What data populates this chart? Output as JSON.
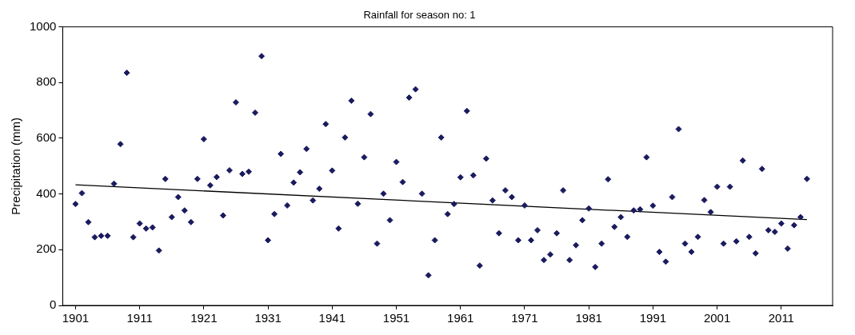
{
  "chart_data": {
    "type": "scatter",
    "title": "Rainfall for season no: 1",
    "ylabel": "Precipitation (mm)",
    "xlim": [
      1899,
      2019
    ],
    "xticks": [
      1901,
      1911,
      1921,
      1931,
      1941,
      1951,
      1961,
      1971,
      1981,
      1991,
      2001,
      2011
    ],
    "ylim": [
      0,
      1000
    ],
    "yticks": [
      0,
      200,
      400,
      600,
      800,
      1000
    ],
    "grid": false,
    "legend": false,
    "marker": "diamond",
    "series": [
      {
        "color": "#1a1a5e",
        "x": [
          1901,
          1902,
          1903,
          1904,
          1905,
          1906,
          1907,
          1908,
          1909,
          1910,
          1911,
          1912,
          1913,
          1914,
          1915,
          1916,
          1917,
          1918,
          1919,
          1920,
          1921,
          1922,
          1923,
          1924,
          1925,
          1926,
          1927,
          1928,
          1929,
          1930,
          1931,
          1932,
          1933,
          1934,
          1935,
          1936,
          1937,
          1938,
          1939,
          1940,
          1941,
          1942,
          1943,
          1944,
          1945,
          1946,
          1947,
          1948,
          1949,
          1950,
          1951,
          1952,
          1953,
          1954,
          1955,
          1956,
          1957,
          1958,
          1959,
          1960,
          1961,
          1962,
          1963,
          1964,
          1965,
          1966,
          1967,
          1968,
          1969,
          1970,
          1971,
          1972,
          1973,
          1974,
          1975,
          1976,
          1977,
          1978,
          1979,
          1980,
          1981,
          1982,
          1983,
          1984,
          1985,
          1986,
          1987,
          1988,
          1989,
          1990,
          1991,
          1992,
          1993,
          1994,
          1995,
          1996,
          1997,
          1998,
          1999,
          2000,
          2001,
          2002,
          2003,
          2004,
          2005,
          2006,
          2007,
          2008,
          2009,
          2010,
          2011,
          2012,
          2013,
          2014,
          2015
        ],
        "values": [
          364,
          403,
          299,
          245,
          250,
          250,
          437,
          579,
          835,
          245,
          294,
          276,
          280,
          197,
          454,
          317,
          389,
          341,
          299,
          454,
          597,
          431,
          461,
          323,
          485,
          729,
          472,
          480,
          692,
          895,
          234,
          328,
          544,
          359,
          441,
          478,
          562,
          377,
          419,
          651,
          484,
          276,
          603,
          735,
          365,
          532,
          687,
          222,
          401,
          306,
          515,
          443,
          746,
          776,
          401,
          108,
          234,
          603,
          328,
          364,
          460,
          698,
          467,
          143,
          527,
          377,
          259,
          413,
          389,
          234,
          359,
          234,
          270,
          163,
          183,
          259,
          413,
          163,
          216,
          306,
          348,
          138,
          222,
          453,
          282,
          317,
          246,
          341,
          345,
          532,
          358,
          192,
          157,
          389,
          633,
          222,
          192,
          246,
          378,
          335,
          426,
          222,
          426,
          230,
          520,
          246,
          187,
          490,
          270,
          264,
          294,
          204,
          288,
          317,
          454
        ]
      },
      {
        "type": "line",
        "color": "#000000",
        "x": [
          1901,
          2015
        ],
        "values": [
          433,
          308
        ],
        "marker": "none",
        "line_style": "solid"
      }
    ]
  }
}
